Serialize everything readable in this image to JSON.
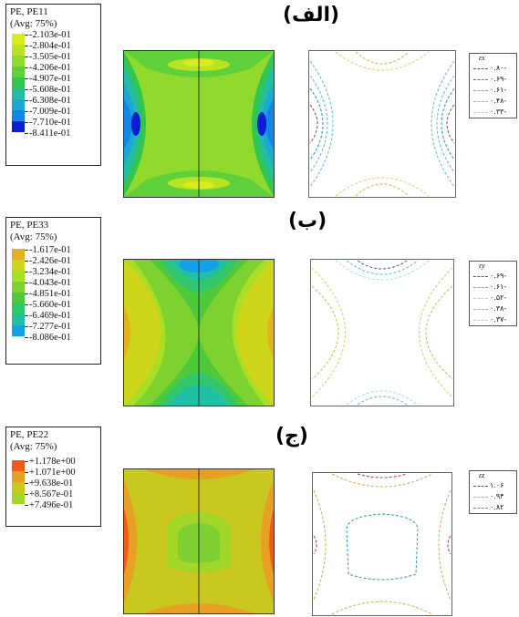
{
  "panels": [
    {
      "title": "(الف)",
      "legend_title": "PE, PE11",
      "legend_sub": "(Avg: 75%)",
      "levels": [
        "-2.103e-01",
        "-2.804e-01",
        "-3.505e-01",
        "-4.206e-01",
        "-4.907e-01",
        "-5.608e-01",
        "-6.308e-01",
        "-7.009e-01",
        "-7.710e-01",
        "-8.411e-01"
      ],
      "level_colors": [
        "#d9ec1a",
        "#b7e322",
        "#8fda2d",
        "#5fd03a",
        "#33c552",
        "#22bda2",
        "#1aa8d6",
        "#1486e8",
        "#0c56e6",
        "#0a1fd0"
      ],
      "line_legend_title": "εx",
      "line_legend": [
        {
          "value": "۰.۸۰-",
          "color": "#555555"
        },
        {
          "value": "۰.۶۹-",
          "color": "#1e90c8"
        },
        {
          "value": "۰.۶۱-",
          "color": "#5ab4e0"
        },
        {
          "value": "۰.۴۸-",
          "color": "#c8b84a"
        },
        {
          "value": "۰.۳۳-",
          "color": "#dcc86a"
        }
      ]
    },
    {
      "title": "(ب)",
      "legend_title": "PE, PE33",
      "legend_sub": "(Avg: 75%)",
      "levels": [
        "-1.617e-01",
        "-2.426e-01",
        "-3.234e-01",
        "-4.043e-01",
        "-4.851e-01",
        "-5.660e-01",
        "-6.469e-01",
        "-7.277e-01",
        "-8.086e-01"
      ],
      "level_colors": [
        "#e2b21e",
        "#cfd619",
        "#a8de24",
        "#7ed22f",
        "#4ec93c",
        "#2fc66e",
        "#20c0a6",
        "#1bb6d2",
        "#14a0e6"
      ],
      "line_legend_title": "εy",
      "line_legend": [
        {
          "value": "۰.۶۹-",
          "color": "#555555"
        },
        {
          "value": "۰.۶۱-",
          "color": "#5ab4e0"
        },
        {
          "value": "۰.۵۲-",
          "color": "#a8d8e8"
        },
        {
          "value": "۰.۳۸-",
          "color": "#c8b84a"
        },
        {
          "value": "۰.۳۷-",
          "color": "#dcc86a"
        }
      ]
    },
    {
      "title": "(ج)",
      "legend_title": "PE, PE22",
      "legend_sub": "(Avg: 75%)",
      "levels": [
        "+1.178e+00",
        "+1.071e+00",
        "+9.638e-01",
        "+8.567e-01",
        "+7.496e-01"
      ],
      "level_colors": [
        "#f05a14",
        "#e8a024",
        "#c8c81e",
        "#a2d628",
        "#7ecf32"
      ],
      "line_legend_title": "εz",
      "line_legend": [
        {
          "value": "۱.۰۶",
          "color": "#a83a3a"
        },
        {
          "value": "۰.۹۴",
          "color": "#d4a84a"
        },
        {
          "value": "۰.۸۲",
          "color": "#2c9ab0"
        }
      ]
    }
  ]
}
